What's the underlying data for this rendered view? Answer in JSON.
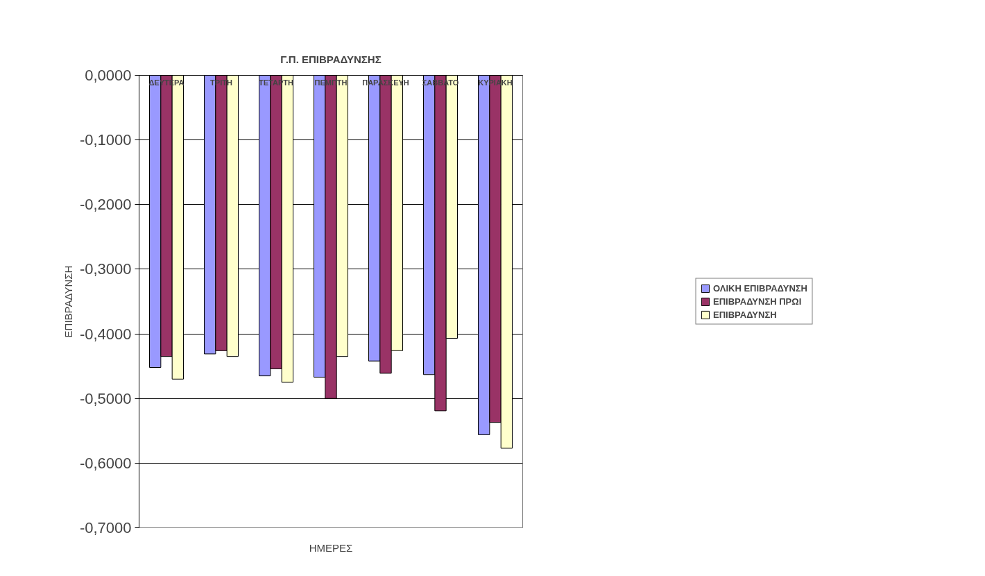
{
  "chart_data": {
    "type": "bar",
    "title": "Γ.Π. ΕΠΙΒΡΑΔΥΝΣΗΣ",
    "xlabel": "ΗΜΕΡΕΣ",
    "ylabel": "ΕΠΙΒΡΑΔΥΝΣΗ",
    "categories": [
      "ΔΕΥΤΕΡΑ",
      "ΤΡΙΤΗ",
      "ΤΕΤΑΡΤΗ",
      "ΠΕΜΠΤΗ",
      "ΠΑΡΑΣΚΕΥΗ",
      "ΣΑΒΒΑΤΟ",
      "ΚΥΡΙΑΚΗ"
    ],
    "series": [
      {
        "name": "ΟΛΙΚΗ ΕΠΙΒΡΑΔΥΝΣΗ",
        "color": "#9999ff",
        "values": [
          -0.452,
          -0.431,
          -0.465,
          -0.467,
          -0.442,
          -0.463,
          -0.556
        ]
      },
      {
        "name": "ΕΠΙΒΡΑΔΥΝΣΗ ΠΡΩΙ",
        "color": "#993366",
        "values": [
          -0.435,
          -0.426,
          -0.454,
          -0.5,
          -0.461,
          -0.519,
          -0.537
        ]
      },
      {
        "name": "ΕΠΙΒΡΑΔΥΝΣΗ",
        "color": "#ffffcc",
        "values": [
          -0.47,
          -0.435,
          -0.475,
          -0.435,
          -0.426,
          -0.407,
          -0.577
        ]
      }
    ],
    "ylim": [
      -0.7,
      0
    ],
    "yticks": [
      {
        "value": 0,
        "label": "0,0000"
      },
      {
        "value": -0.1,
        "label": "-0,1000"
      },
      {
        "value": -0.2,
        "label": "-0,2000"
      },
      {
        "value": -0.3,
        "label": "-0,3000"
      },
      {
        "value": -0.4,
        "label": "-0,4000"
      },
      {
        "value": -0.5,
        "label": "-0,5000"
      },
      {
        "value": -0.6,
        "label": "-0,6000"
      },
      {
        "value": -0.7,
        "label": "-0,7000"
      }
    ],
    "grid": "y",
    "legend": "right"
  }
}
